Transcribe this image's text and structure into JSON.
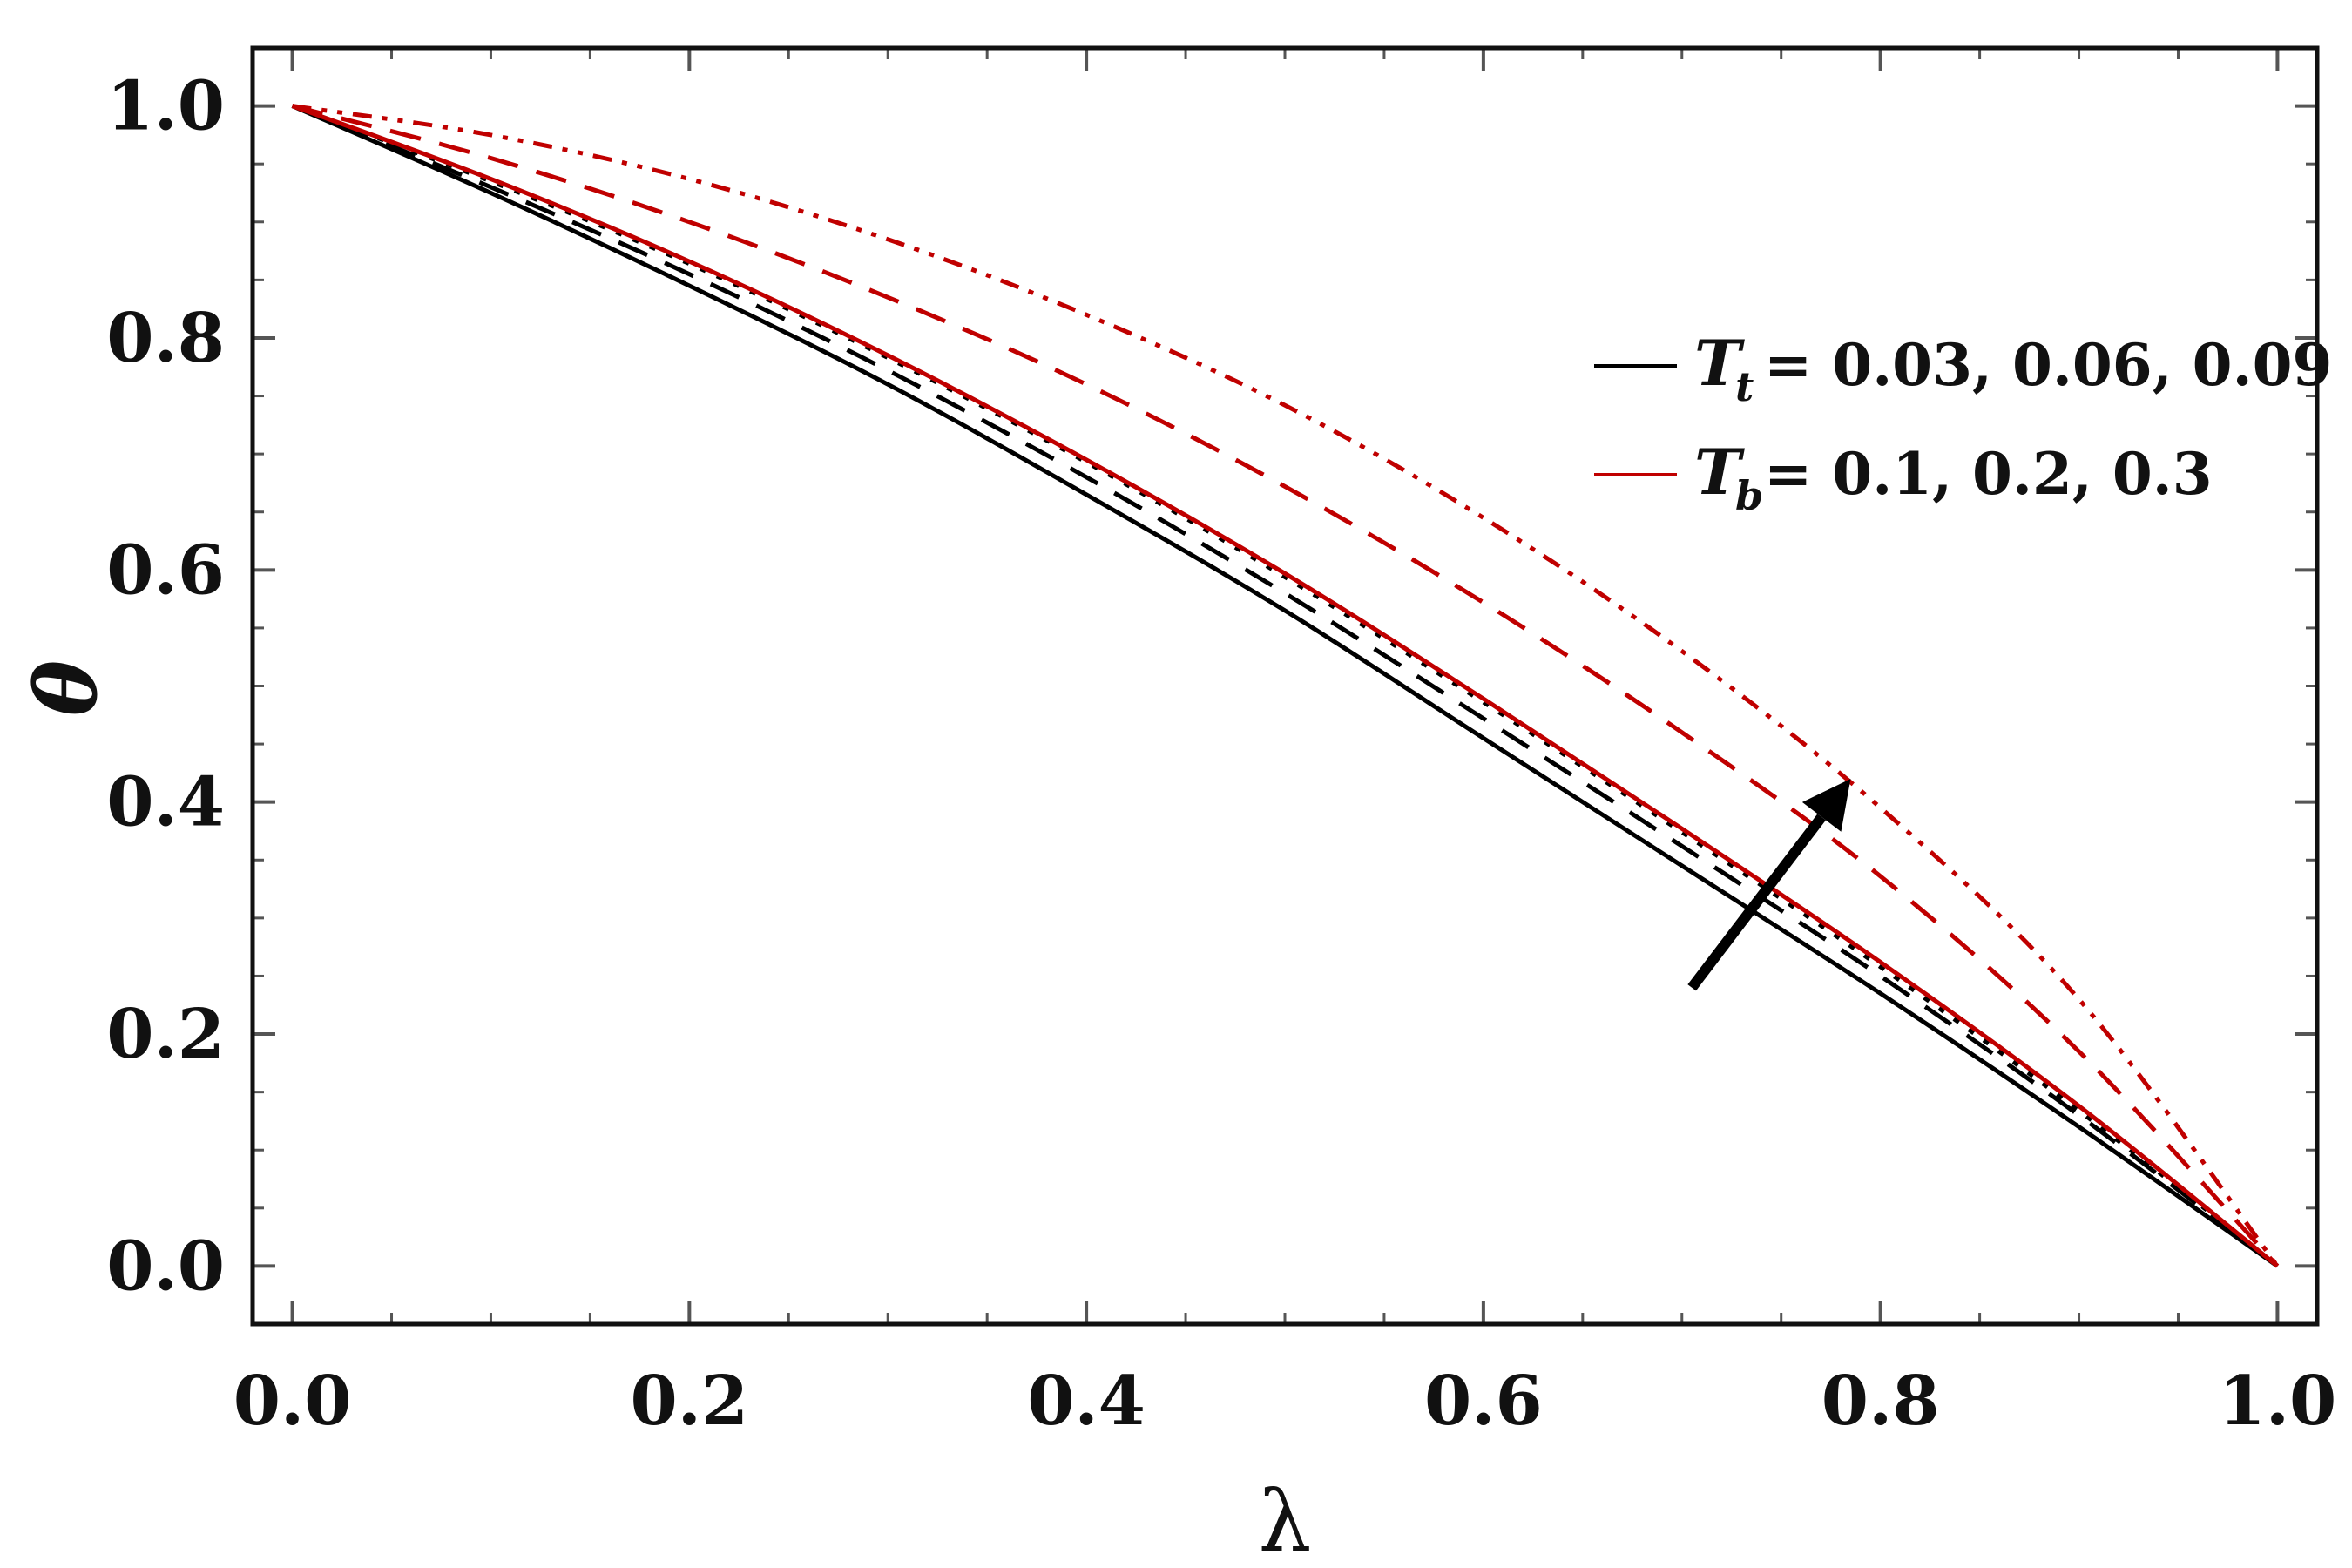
{
  "chart_data": {
    "type": "line",
    "title": "",
    "xlabel": "λ",
    "ylabel": "θ",
    "xlim": [
      -0.02,
      1.02
    ],
    "ylim": [
      -0.05,
      1.05
    ],
    "grid": false,
    "x_ticks": [
      "0.0",
      "0.2",
      "0.4",
      "0.6",
      "0.8",
      "1.0"
    ],
    "y_ticks": [
      "0.0",
      "0.2",
      "0.4",
      "0.6",
      "0.8",
      "1.0"
    ],
    "x": [
      0,
      0.1,
      0.2,
      0.3,
      0.4,
      0.5,
      0.6,
      0.7,
      0.8,
      0.9,
      1.0
    ],
    "series": [
      {
        "name": "T_t = 0.03",
        "group": "Tt",
        "color": "#000000",
        "dash": "solid",
        "values": [
          1.0,
          0.925,
          0.845,
          0.76,
          0.665,
          0.565,
          0.455,
          0.345,
          0.235,
          0.12,
          0.0
        ]
      },
      {
        "name": "T_t = 0.06",
        "group": "Tt",
        "color": "#000000",
        "dash": "dashed",
        "values": [
          1.0,
          0.93,
          0.855,
          0.772,
          0.68,
          0.58,
          0.472,
          0.362,
          0.25,
          0.13,
          0.0
        ]
      },
      {
        "name": "T_t = 0.09",
        "group": "Tt",
        "color": "#000000",
        "dash": "dotted",
        "values": [
          1.0,
          0.935,
          0.864,
          0.783,
          0.693,
          0.594,
          0.486,
          0.374,
          0.258,
          0.134,
          0.0
        ]
      },
      {
        "name": "T_b = 0.1",
        "group": "Tb",
        "color": "#c00000",
        "dash": "solid",
        "values": [
          1.0,
          0.937,
          0.866,
          0.785,
          0.695,
          0.597,
          0.489,
          0.377,
          0.262,
          0.138,
          0.0
        ]
      },
      {
        "name": "T_b = 0.2",
        "group": "Tb",
        "color": "#c00000",
        "dash": "dashed",
        "values": [
          1.0,
          0.955,
          0.9,
          0.835,
          0.76,
          0.672,
          0.572,
          0.46,
          0.336,
          0.185,
          0.0
        ]
      },
      {
        "name": "T_b = 0.3",
        "group": "Tb",
        "color": "#c00000",
        "dash": "dashdotdot",
        "values": [
          1.0,
          0.975,
          0.937,
          0.885,
          0.82,
          0.742,
          0.645,
          0.53,
          0.395,
          0.23,
          0.0
        ]
      }
    ],
    "legend": [
      {
        "symbol": "T",
        "subscript": "t",
        "text": "= 0.03, 0.06, 0.09",
        "color": "#000000"
      },
      {
        "symbol": "T",
        "subscript": "b",
        "text": "= 0.1, 0.2, 0.3",
        "color": "#c00000"
      }
    ],
    "legend_position": "top-right",
    "annotations": [
      {
        "type": "arrow",
        "from": [
          0.705,
          0.24
        ],
        "to": [
          0.785,
          0.42
        ],
        "color": "#000000",
        "meaning": "increasing parameter"
      }
    ]
  }
}
